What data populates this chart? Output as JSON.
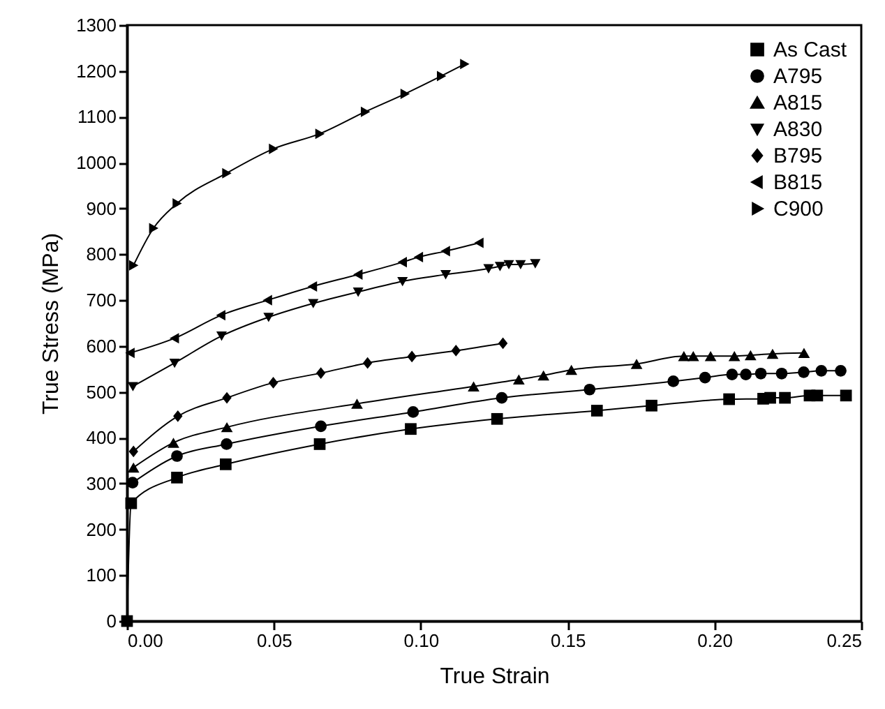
{
  "chart_data": {
    "type": "line",
    "xlabel": "True Strain",
    "ylabel": "True Stress (MPa)",
    "xlim": [
      0,
      0.25
    ],
    "ylim": [
      0,
      1300
    ],
    "xticks": [
      {
        "value": 0,
        "label": "0.00"
      },
      0.05,
      {
        "value": 0.1,
        "label": "0.10"
      },
      0.15,
      {
        "value": 0.2,
        "label": "0.20"
      },
      0.25
    ],
    "yticks": [
      0,
      100,
      200,
      300,
      400,
      500,
      600,
      700,
      800,
      900,
      1000,
      1100,
      1200,
      1300
    ],
    "legend": "top right",
    "grid": false,
    "line_style": "solid",
    "series": [
      {
        "name": "As Cast",
        "color": "#000000",
        "marker": "square",
        "x": [
          0,
          0.0014,
          0.017,
          0.0336,
          0.0656,
          0.0966,
          0.126,
          0.16,
          0.1786,
          0.205,
          0.2166,
          0.219,
          0.224,
          0.2324,
          0.235,
          0.2448
        ],
        "values": [
          0,
          257,
          313,
          342,
          386,
          419,
          441,
          459,
          470,
          484,
          485,
          487,
          487,
          492,
          492,
          492
        ]
      },
      {
        "name": "A795",
        "color": "#000000",
        "marker": "circle",
        "x": [
          0.0019,
          0.017,
          0.0339,
          0.066,
          0.0974,
          0.1276,
          0.1575,
          0.186,
          0.1968,
          0.206,
          0.2107,
          0.2158,
          0.2229,
          0.2304,
          0.2364,
          0.243
        ],
        "values": [
          302,
          360,
          386,
          425,
          456,
          487,
          505,
          523,
          531,
          538,
          538,
          540,
          540,
          543,
          546,
          546
        ]
      },
      {
        "name": "A815",
        "color": "#000000",
        "marker": "triangle-up",
        "x": [
          0.0022,
          0.0158,
          0.034,
          0.0783,
          0.118,
          0.1334,
          0.1418,
          0.1513,
          0.1735,
          0.1896,
          0.1928,
          0.1987,
          0.2068,
          0.2123,
          0.2198,
          0.2305
        ],
        "values": [
          335,
          389,
          423,
          474,
          512,
          527,
          536,
          548,
          561,
          578,
          578,
          578,
          578,
          580,
          583,
          585
        ]
      },
      {
        "name": "A830",
        "color": "#000000",
        "marker": "triangle-down",
        "x": [
          0.002,
          0.0162,
          0.0322,
          0.0482,
          0.0634,
          0.0787,
          0.0938,
          0.1085,
          0.1231,
          0.127,
          0.13,
          0.134,
          0.139
        ],
        "values": [
          512,
          563,
          622,
          663,
          693,
          718,
          741,
          756,
          769,
          774,
          778,
          778,
          780
        ]
      },
      {
        "name": "B795",
        "color": "#000000",
        "marker": "diamond",
        "x": [
          0.0022,
          0.0173,
          0.034,
          0.0498,
          0.066,
          0.0819,
          0.097,
          0.112,
          0.128
        ],
        "values": [
          370,
          447,
          487,
          520,
          541,
          563,
          577,
          590,
          606
        ]
      },
      {
        "name": "B815",
        "color": "#000000",
        "marker": "triangle-left",
        "x": [
          0.0011,
          0.0162,
          0.032,
          0.0479,
          0.0632,
          0.0787,
          0.0938,
          0.0993,
          0.1085,
          0.1199
        ],
        "values": [
          585,
          617,
          667,
          700,
          730,
          756,
          783,
          794,
          807,
          825
        ]
      },
      {
        "name": "C900",
        "color": "#000000",
        "marker": "triangle-right",
        "x": [
          0.0022,
          0.009,
          0.017,
          0.0339,
          0.0498,
          0.0656,
          0.0811,
          0.0946,
          0.107,
          0.1149
        ],
        "values": [
          776,
          857,
          911,
          977,
          1030,
          1063,
          1111,
          1150,
          1189,
          1215
        ]
      }
    ]
  }
}
